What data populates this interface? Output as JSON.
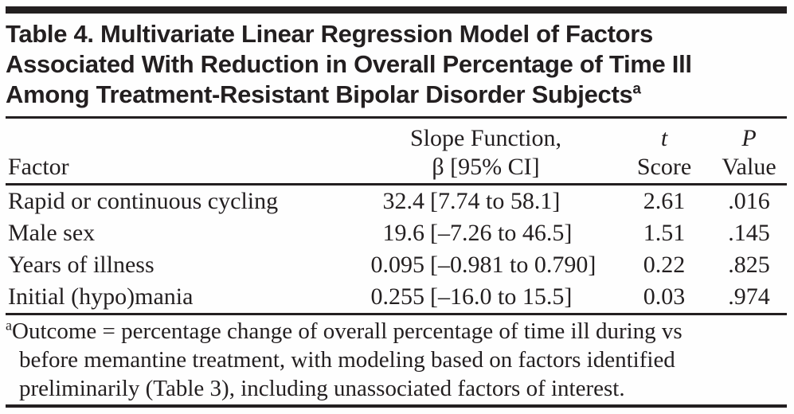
{
  "table": {
    "title_lines": [
      "Table 4. Multivariate Linear Regression Model of Factors",
      "Associated With Reduction in Overall Percentage of Time Ill",
      "Among Treatment-Resistant Bipolar Disorder Subjects"
    ],
    "title_superscript": "a",
    "columns": {
      "factor": "Factor",
      "slope_line1": "Slope Function,",
      "slope_line2": "β [95% CI]",
      "t_line1": "t",
      "t_line2": "Score",
      "p_line1": "P",
      "p_line2": "Value"
    },
    "rows": [
      {
        "factor": "Rapid or continuous cycling",
        "beta": "32.4",
        "ci": "[7.74 to 58.1]",
        "t_score": "2.61",
        "p_value": ".016"
      },
      {
        "factor": "Male sex",
        "beta": "19.6",
        "ci": "[–7.26 to 46.5]",
        "t_score": "1.51",
        "p_value": ".145"
      },
      {
        "factor": "Years of illness",
        "beta": "0.095",
        "ci": "[–0.981 to 0.790]",
        "t_score": "0.22",
        "p_value": ".825"
      },
      {
        "factor": "Initial (hypo)mania",
        "beta": "0.255",
        "ci": "[–16.0 to 15.5]",
        "t_score": "0.03",
        "p_value": ".974"
      }
    ],
    "footnote": {
      "marker": "a",
      "lines": [
        "Outcome = percentage change of overall percentage of time ill during vs",
        "before memantine treatment, with modeling based on factors identified",
        "preliminarily (Table 3), including unassociated factors of interest."
      ]
    },
    "colors": {
      "text": "#231f20",
      "rule": "#231f20",
      "background": "#fefefe"
    }
  }
}
